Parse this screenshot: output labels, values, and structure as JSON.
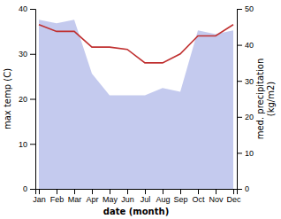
{
  "chart_data": {
    "type": "line",
    "categories": [
      "Jan",
      "Feb",
      "Mar",
      "Apr",
      "May",
      "Jun",
      "Jul",
      "Aug",
      "Sep",
      "Oct",
      "Nov",
      "Dec"
    ],
    "series": [
      {
        "type": "area",
        "axis": "y2",
        "color": "#b0b8e8",
        "values": [
          47,
          46,
          47,
          32,
          26,
          26,
          26,
          28,
          27,
          44,
          43,
          44
        ]
      },
      {
        "type": "line",
        "color": "#c03030",
        "values": [
          36.5,
          35.0,
          35.0,
          31.5,
          31.5,
          31.0,
          28.0,
          28.0,
          30.0,
          34.0,
          34.0,
          36.5
        ]
      }
    ],
    "xlabel": "date (month)",
    "ylabel": "max temp (C)",
    "y2label": "med. precipitation\n(kg/m2)",
    "ylim": [
      0,
      40
    ],
    "yticks": [
      0,
      10,
      20,
      30,
      40
    ],
    "y2lim": [
      0,
      50
    ],
    "y2ticks": [
      0,
      10,
      20,
      30,
      40,
      50
    ],
    "grid": false
  }
}
